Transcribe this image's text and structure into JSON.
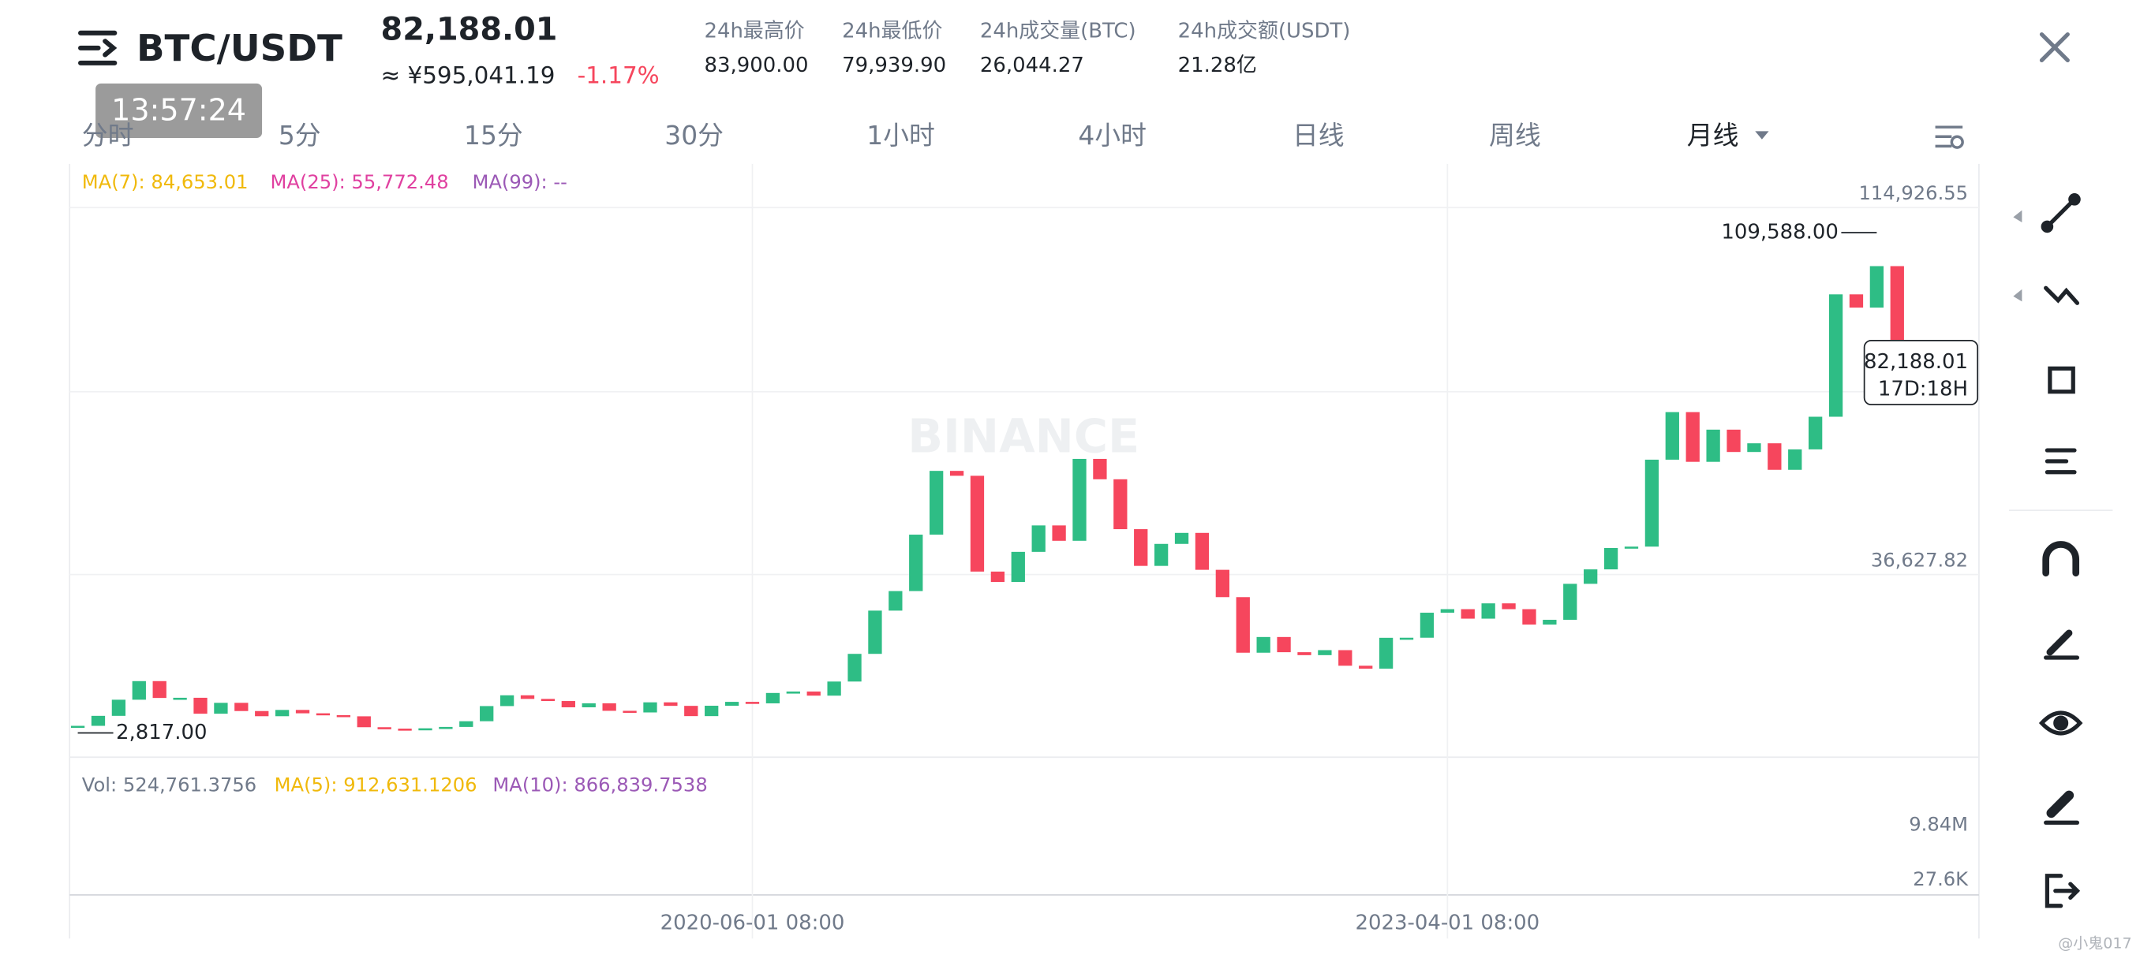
{
  "header": {
    "pair": "BTC/USDT",
    "time": "13:57:24",
    "price": "82,188.01",
    "price_cny": "≈ ¥595,041.19",
    "change": "-1.17%",
    "stats": [
      {
        "label": "24h最高价",
        "value": "83,900.00"
      },
      {
        "label": "24h最低价",
        "value": "79,939.90"
      },
      {
        "label": "24h成交量(BTC)",
        "value": "26,044.27"
      },
      {
        "label": "24h成交额(USDT)",
        "value": "21.28亿"
      }
    ]
  },
  "intervals": [
    "分时",
    "5分",
    "15分",
    "30分",
    "1小时",
    "4小时",
    "日线",
    "周线",
    "月线"
  ],
  "ma_legend": [
    "MA(7): 84,653.01",
    "MA(25): 55,772.48",
    "MA(99): --"
  ],
  "watermark": "BINANCE",
  "chart_data": {
    "type": "candlestick",
    "closes": [
      4338,
      6468,
      9910,
      13880,
      10285,
      10326,
      6923,
      9246,
      7494,
      6391,
      7730,
      7012,
      6626,
      6371,
      4041,
      3742,
      3458,
      3813,
      4103,
      5321,
      8555,
      10855,
      10085,
      9630,
      8294,
      9150,
      7543,
      7196,
      9352,
      8600,
      6412,
      8625,
      9454,
      9138,
      11351,
      11655,
      10777,
      13791,
      19695,
      28923,
      33092,
      45135,
      58740,
      57694,
      37254,
      35045,
      41462,
      47100,
      43824,
      61300,
      56950,
      46306,
      38466,
      43160,
      45510,
      37630,
      31801,
      19942,
      23293,
      20050,
      19423,
      20490,
      17164,
      16542,
      23125,
      23141,
      28478,
      29233,
      27210,
      30472,
      29232,
      25941,
      26963,
      34640,
      37723,
      42284,
      42580,
      61131,
      71280,
      60672,
      67540,
      62772,
      64628,
      58974,
      63328,
      70292,
      96407,
      93576,
      102430,
      84350,
      82188.01
    ],
    "up_color": "#2ebd85",
    "down_color": "#f6465d",
    "ylim": [
      -2350,
      123660
    ],
    "yticks": [
      {
        "value": 114926.55,
        "label": "114,926.55"
      },
      {
        "value": 36627.82,
        "label": "36,627.82"
      }
    ],
    "xlim": [
      -0.4,
      93
    ],
    "xticks": [
      {
        "value": 33,
        "label": "2020-06-01 08:00"
      },
      {
        "value": 67,
        "label": "2023-04-01 08:00"
      }
    ],
    "high": {
      "value": 109588,
      "label": "109,588.00",
      "index": 88
    },
    "low": {
      "value": 2817,
      "label": "2,817.00",
      "index": 0
    },
    "last": {
      "value": 82188.01,
      "label": "82,188.01",
      "countdown": "17D:18H"
    }
  },
  "volume": {
    "legend": [
      "Vol: 524,761.3756",
      "MA(5): 912,631.1206",
      "MA(10): 866,839.7538"
    ],
    "ticks": [
      "9.84M",
      "27.6K"
    ]
  },
  "footer": "@小鬼017"
}
